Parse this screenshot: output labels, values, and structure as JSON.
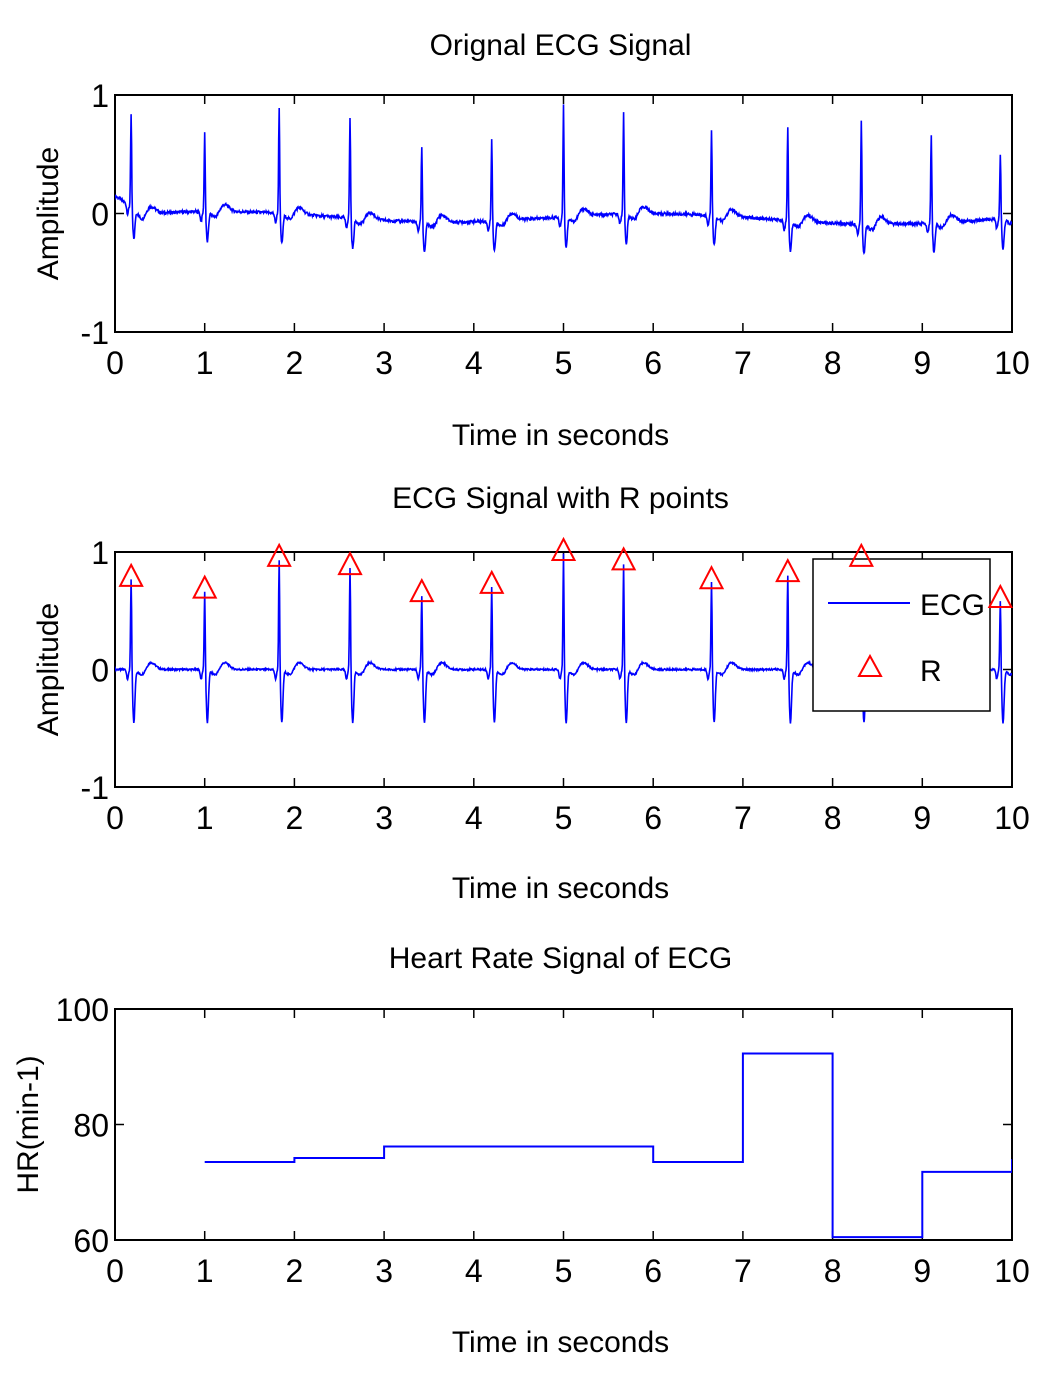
{
  "chart_data": [
    {
      "type": "line",
      "title": "Orignal ECG Signal",
      "xlabel": "Time in seconds",
      "ylabel": "Amplitude",
      "xlim": [
        0,
        10
      ],
      "ylim": [
        -1,
        1
      ],
      "xticks": [
        "0",
        "1",
        "2",
        "3",
        "4",
        "5",
        "6",
        "7",
        "8",
        "9",
        "10"
      ],
      "yticks": [
        "-1",
        "0",
        "1"
      ],
      "grid": false,
      "series": [
        {
          "color": "#0000ff",
          "r_peak_times": [
            0.18,
            1.0,
            1.83,
            2.62,
            3.42,
            4.2,
            5.0,
            5.67,
            6.65,
            7.5,
            8.32,
            9.1,
            9.87
          ],
          "r_peak_values": [
            0.78,
            0.68,
            0.9,
            0.85,
            0.65,
            0.7,
            0.95,
            0.88,
            0.72,
            0.8,
            0.88,
            0.75,
            0.55
          ],
          "baseline_start": 0.15,
          "baseline_mid": -0.02,
          "baseline_end": -0.08,
          "s_wave_depth": -0.25
        }
      ]
    },
    {
      "type": "line",
      "title": "ECG Signal with R points",
      "xlabel": "Time in seconds",
      "ylabel": "Amplitude",
      "xlim": [
        0,
        10
      ],
      "ylim": [
        -1,
        1
      ],
      "xticks": [
        "0",
        "1",
        "2",
        "3",
        "4",
        "5",
        "6",
        "7",
        "8",
        "9",
        "10"
      ],
      "yticks": [
        "-1",
        "0",
        "1"
      ],
      "grid": false,
      "legend_position": "right",
      "series": [
        {
          "name": "ECG",
          "color": "#0000ff",
          "r_peak_times": [
            0.18,
            1.0,
            1.83,
            2.62,
            3.42,
            4.2,
            5.0,
            5.67,
            6.65,
            7.5,
            8.32,
            9.87
          ],
          "r_peak_values": [
            0.78,
            0.68,
            0.95,
            0.88,
            0.65,
            0.72,
            1.0,
            0.92,
            0.76,
            0.82,
            0.95,
            0.6
          ],
          "s_wave_depth": -0.45
        },
        {
          "name": "R",
          "color": "#ff0000",
          "marker": "triangle",
          "x": [
            0.18,
            1.0,
            1.83,
            2.62,
            3.42,
            4.2,
            5.0,
            5.67,
            6.65,
            7.5,
            8.32,
            9.87
          ],
          "y": [
            0.78,
            0.68,
            0.95,
            0.88,
            0.65,
            0.72,
            1.0,
            0.92,
            0.76,
            0.82,
            0.95,
            0.6
          ]
        }
      ]
    },
    {
      "type": "line",
      "title": "Heart Rate Signal of ECG",
      "xlabel": "Time in seconds",
      "ylabel": "HR(min-1)",
      "xlim": [
        0,
        10
      ],
      "ylim": [
        60,
        100
      ],
      "xticks": [
        "0",
        "1",
        "2",
        "3",
        "4",
        "5",
        "6",
        "7",
        "8",
        "9",
        "10"
      ],
      "yticks": [
        "60",
        "80",
        "100"
      ],
      "grid": false,
      "series": [
        {
          "color": "#0000ff",
          "step": true,
          "x": [
            1,
            2,
            3,
            4,
            5,
            6,
            7,
            8,
            9,
            10
          ],
          "y": [
            73.5,
            74.2,
            76.2,
            76.2,
            76.2,
            73.5,
            92.3,
            60.5,
            71.8,
            74.0
          ]
        }
      ]
    }
  ]
}
